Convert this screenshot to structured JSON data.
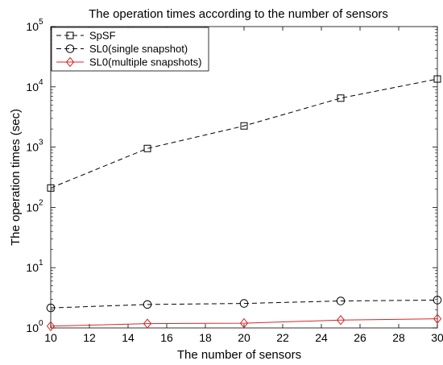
{
  "chart_data": {
    "type": "line",
    "title": "The operation times according to the number of sensors",
    "xlabel": "The number of sensors",
    "ylabel": "The operation times (sec)",
    "xlim": [
      10,
      30
    ],
    "xticks": [
      10,
      12,
      14,
      16,
      18,
      20,
      22,
      24,
      26,
      28,
      30
    ],
    "yscale": "log",
    "ylim": [
      1,
      100000
    ],
    "yticks": [
      {
        "value": 1,
        "base": "10",
        "exp": "0"
      },
      {
        "value": 10,
        "base": "10",
        "exp": "1"
      },
      {
        "value": 100,
        "base": "10",
        "exp": "2"
      },
      {
        "value": 1000,
        "base": "10",
        "exp": "3"
      },
      {
        "value": 10000,
        "base": "10",
        "exp": "4"
      },
      {
        "value": 100000,
        "base": "10",
        "exp": "5"
      }
    ],
    "grid": false,
    "legend_position": "top-left",
    "series": [
      {
        "name": "SpSF",
        "x": [
          10,
          15,
          20,
          25,
          30
        ],
        "values": [
          210,
          950,
          2250,
          6500,
          13500
        ],
        "color": "#000000",
        "line": "dashed",
        "marker": "square"
      },
      {
        "name": "SL0(single snapshot)",
        "x": [
          10,
          15,
          20,
          25,
          30
        ],
        "values": [
          2.15,
          2.45,
          2.55,
          2.8,
          2.9
        ],
        "color": "#000000",
        "line": "dashed",
        "marker": "circle"
      },
      {
        "name": "SL0(multiple snapshots)",
        "x": [
          10,
          15,
          20,
          25,
          30
        ],
        "values": [
          1.07,
          1.18,
          1.2,
          1.35,
          1.42
        ],
        "color": "#d62728",
        "line": "solid",
        "marker": "diamond"
      }
    ]
  }
}
